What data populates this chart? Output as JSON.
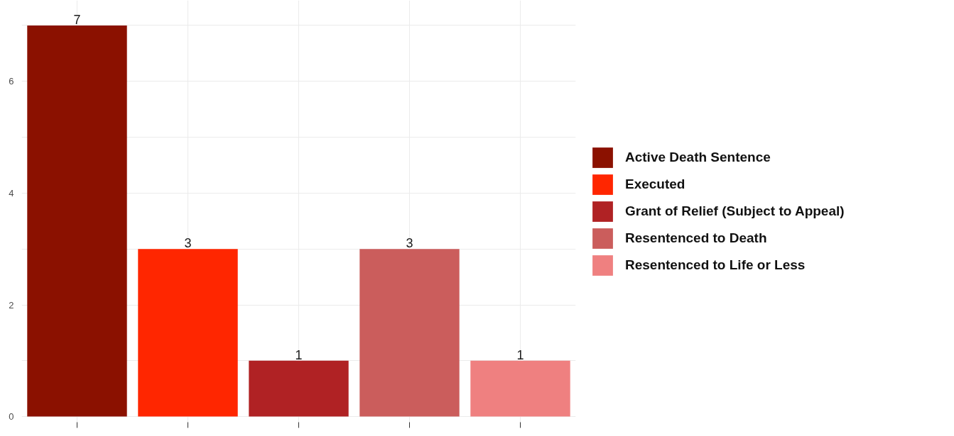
{
  "chart_data": {
    "type": "bar",
    "categories": [
      null,
      null,
      null,
      null,
      null
    ],
    "series": [
      {
        "name": "Active Death Sentence",
        "color": "#8b1100",
        "values": [
          7,
          null,
          null,
          null,
          null
        ]
      },
      {
        "name": "Executed",
        "color": "#ff2600",
        "values": [
          null,
          3,
          null,
          null,
          null
        ]
      },
      {
        "name": "Grant of Relief (Subject to Appeal)",
        "color": "#b02224",
        "values": [
          null,
          null,
          1,
          null,
          null
        ]
      },
      {
        "name": "Resentenced to Death",
        "color": "#cb5d5c",
        "values": [
          null,
          null,
          null,
          3,
          null
        ]
      },
      {
        "name": "Resentenced to Life or Less",
        "color": "#ef8080",
        "values": [
          null,
          null,
          null,
          null,
          1
        ]
      }
    ],
    "data_labels": true,
    "legend": "right",
    "grid": true,
    "ylim": [
      -0.1,
      7.45
    ],
    "yticks": [
      0,
      {
        "value": 1,
        "label": null
      },
      2,
      {
        "value": 3,
        "label": null
      },
      4,
      {
        "value": 5,
        "label": null
      },
      6,
      {
        "value": 7,
        "label": null
      }
    ]
  }
}
